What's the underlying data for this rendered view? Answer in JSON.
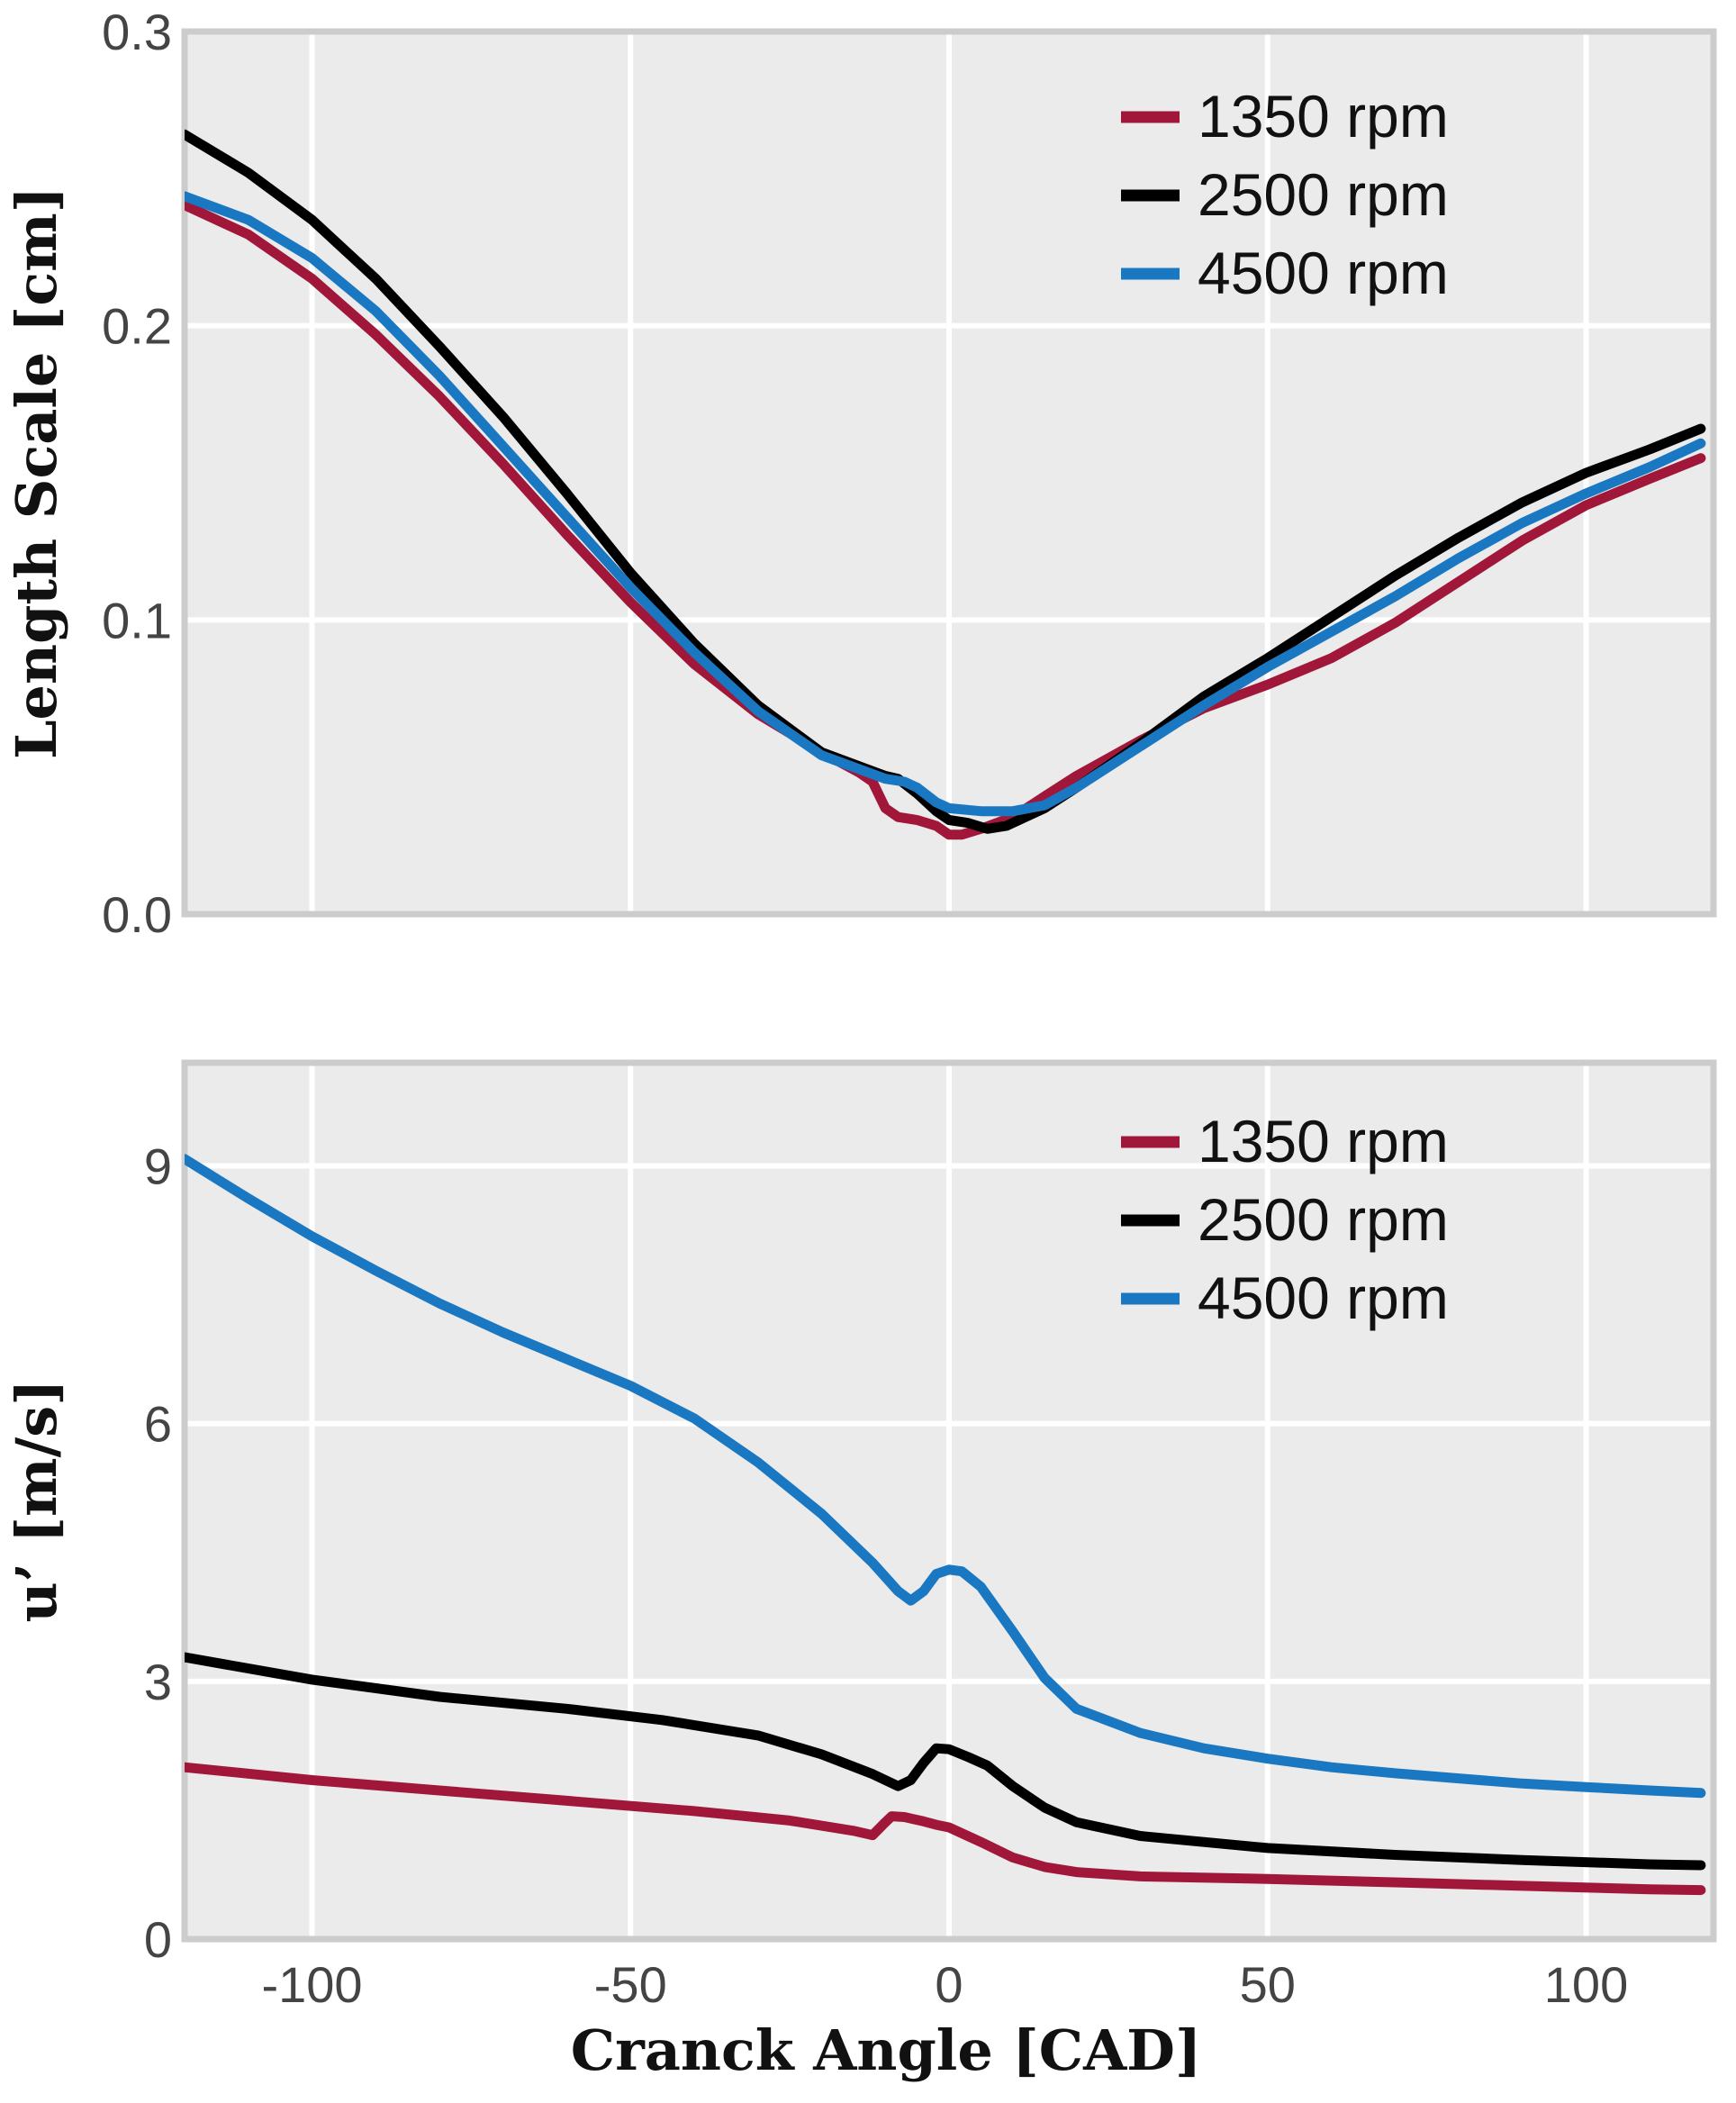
{
  "chart_data": [
    {
      "type": "line",
      "panel": "top",
      "title": "",
      "xlabel": "",
      "ylabel": "Length Scale [cm]",
      "xlim": [
        -120,
        120
      ],
      "ylim": [
        0,
        0.3
      ],
      "xticks": [
        -100,
        -50,
        0,
        50,
        100
      ],
      "yticks": [
        0,
        0.1,
        0.2,
        0.3
      ],
      "ytick_labels": [
        "0.0",
        "0.1",
        "0.2",
        "0.3"
      ],
      "grid": true,
      "legend_position": "top-right",
      "series": [
        {
          "name": "1350 rpm",
          "color": "#a0173a",
          "points": [
            [
              -120,
              0.241
            ],
            [
              -110,
              0.231
            ],
            [
              -100,
              0.216
            ],
            [
              -90,
              0.197
            ],
            [
              -80,
              0.176
            ],
            [
              -70,
              0.153
            ],
            [
              -60,
              0.129
            ],
            [
              -50,
              0.106
            ],
            [
              -40,
              0.085
            ],
            [
              -30,
              0.068
            ],
            [
              -20,
              0.055
            ],
            [
              -14,
              0.048
            ],
            [
              -12,
              0.045
            ],
            [
              -10,
              0.036
            ],
            [
              -8,
              0.033
            ],
            [
              -5,
              0.032
            ],
            [
              -2,
              0.03
            ],
            [
              0,
              0.027
            ],
            [
              2,
              0.027
            ],
            [
              5,
              0.029
            ],
            [
              10,
              0.033
            ],
            [
              15,
              0.04
            ],
            [
              20,
              0.047
            ],
            [
              30,
              0.059
            ],
            [
              40,
              0.07
            ],
            [
              50,
              0.078
            ],
            [
              60,
              0.087
            ],
            [
              70,
              0.099
            ],
            [
              80,
              0.113
            ],
            [
              90,
              0.127
            ],
            [
              100,
              0.139
            ],
            [
              110,
              0.148
            ],
            [
              118,
              0.155
            ]
          ]
        },
        {
          "name": "2500 rpm",
          "color": "#000000",
          "points": [
            [
              -120,
              0.265
            ],
            [
              -110,
              0.252
            ],
            [
              -100,
              0.236
            ],
            [
              -90,
              0.216
            ],
            [
              -80,
              0.193
            ],
            [
              -70,
              0.169
            ],
            [
              -60,
              0.143
            ],
            [
              -50,
              0.116
            ],
            [
              -40,
              0.092
            ],
            [
              -30,
              0.071
            ],
            [
              -20,
              0.055
            ],
            [
              -10,
              0.047
            ],
            [
              -8,
              0.046
            ],
            [
              -5,
              0.041
            ],
            [
              -2,
              0.035
            ],
            [
              0,
              0.032
            ],
            [
              3,
              0.031
            ],
            [
              6,
              0.029
            ],
            [
              9,
              0.03
            ],
            [
              15,
              0.036
            ],
            [
              20,
              0.043
            ],
            [
              30,
              0.058
            ],
            [
              40,
              0.074
            ],
            [
              50,
              0.087
            ],
            [
              60,
              0.101
            ],
            [
              70,
              0.115
            ],
            [
              80,
              0.128
            ],
            [
              90,
              0.14
            ],
            [
              100,
              0.15
            ],
            [
              110,
              0.158
            ],
            [
              118,
              0.165
            ]
          ]
        },
        {
          "name": "4500 rpm",
          "color": "#1a78c2",
          "points": [
            [
              -120,
              0.244
            ],
            [
              -110,
              0.236
            ],
            [
              -100,
              0.223
            ],
            [
              -90,
              0.205
            ],
            [
              -80,
              0.183
            ],
            [
              -70,
              0.159
            ],
            [
              -60,
              0.135
            ],
            [
              -50,
              0.111
            ],
            [
              -40,
              0.089
            ],
            [
              -30,
              0.069
            ],
            [
              -20,
              0.054
            ],
            [
              -10,
              0.046
            ],
            [
              -7,
              0.045
            ],
            [
              -5,
              0.043
            ],
            [
              -2,
              0.038
            ],
            [
              0,
              0.036
            ],
            [
              5,
              0.035
            ],
            [
              10,
              0.035
            ],
            [
              15,
              0.037
            ],
            [
              20,
              0.043
            ],
            [
              30,
              0.057
            ],
            [
              40,
              0.071
            ],
            [
              50,
              0.084
            ],
            [
              60,
              0.096
            ],
            [
              70,
              0.108
            ],
            [
              80,
              0.121
            ],
            [
              90,
              0.133
            ],
            [
              100,
              0.143
            ],
            [
              110,
              0.152
            ],
            [
              118,
              0.16
            ]
          ]
        }
      ]
    },
    {
      "type": "line",
      "panel": "bottom",
      "title": "",
      "xlabel": "Cranck Angle [CAD]",
      "ylabel": "u’ [m/s]",
      "xlim": [
        -120,
        120
      ],
      "ylim": [
        0,
        10.2
      ],
      "xticks": [
        -100,
        -50,
        0,
        50,
        100
      ],
      "yticks": [
        0,
        3,
        6,
        9
      ],
      "ytick_labels": [
        "0",
        "3",
        "6",
        "9"
      ],
      "grid": true,
      "legend_position": "top-right",
      "series": [
        {
          "name": "1350 rpm",
          "color": "#a0173a",
          "points": [
            [
              -120,
              2.0
            ],
            [
              -100,
              1.85
            ],
            [
              -80,
              1.73
            ],
            [
              -60,
              1.61
            ],
            [
              -40,
              1.49
            ],
            [
              -25,
              1.38
            ],
            [
              -15,
              1.26
            ],
            [
              -12,
              1.21
            ],
            [
              -10,
              1.36
            ],
            [
              -9,
              1.43
            ],
            [
              -7,
              1.42
            ],
            [
              -4,
              1.37
            ],
            [
              -2,
              1.33
            ],
            [
              0,
              1.3
            ],
            [
              5,
              1.13
            ],
            [
              10,
              0.95
            ],
            [
              15,
              0.84
            ],
            [
              20,
              0.78
            ],
            [
              30,
              0.73
            ],
            [
              50,
              0.7
            ],
            [
              70,
              0.66
            ],
            [
              90,
              0.62
            ],
            [
              110,
              0.58
            ],
            [
              118,
              0.57
            ]
          ]
        },
        {
          "name": "2500 rpm",
          "color": "#000000",
          "points": [
            [
              -120,
              3.28
            ],
            [
              -100,
              3.02
            ],
            [
              -80,
              2.82
            ],
            [
              -60,
              2.68
            ],
            [
              -45,
              2.55
            ],
            [
              -30,
              2.37
            ],
            [
              -20,
              2.15
            ],
            [
              -12,
              1.92
            ],
            [
              -8,
              1.78
            ],
            [
              -6,
              1.85
            ],
            [
              -4,
              2.05
            ],
            [
              -2,
              2.22
            ],
            [
              0,
              2.21
            ],
            [
              3,
              2.12
            ],
            [
              6,
              2.02
            ],
            [
              10,
              1.78
            ],
            [
              15,
              1.53
            ],
            [
              20,
              1.36
            ],
            [
              30,
              1.2
            ],
            [
              50,
              1.06
            ],
            [
              70,
              0.98
            ],
            [
              90,
              0.92
            ],
            [
              110,
              0.87
            ],
            [
              118,
              0.86
            ]
          ]
        },
        {
          "name": "4500 rpm",
          "color": "#1a78c2",
          "points": [
            [
              -120,
              9.08
            ],
            [
              -110,
              8.62
            ],
            [
              -100,
              8.18
            ],
            [
              -90,
              7.78
            ],
            [
              -80,
              7.4
            ],
            [
              -70,
              7.06
            ],
            [
              -60,
              6.75
            ],
            [
              -50,
              6.44
            ],
            [
              -40,
              6.06
            ],
            [
              -30,
              5.55
            ],
            [
              -20,
              4.95
            ],
            [
              -12,
              4.38
            ],
            [
              -8,
              4.05
            ],
            [
              -6,
              3.94
            ],
            [
              -4,
              4.05
            ],
            [
              -2,
              4.25
            ],
            [
              0,
              4.3
            ],
            [
              2,
              4.28
            ],
            [
              5,
              4.1
            ],
            [
              10,
              3.58
            ],
            [
              15,
              3.04
            ],
            [
              20,
              2.68
            ],
            [
              30,
              2.4
            ],
            [
              40,
              2.22
            ],
            [
              50,
              2.1
            ],
            [
              60,
              2.0
            ],
            [
              70,
              1.93
            ],
            [
              80,
              1.87
            ],
            [
              90,
              1.81
            ],
            [
              100,
              1.77
            ],
            [
              110,
              1.73
            ],
            [
              118,
              1.7
            ]
          ]
        }
      ]
    }
  ]
}
